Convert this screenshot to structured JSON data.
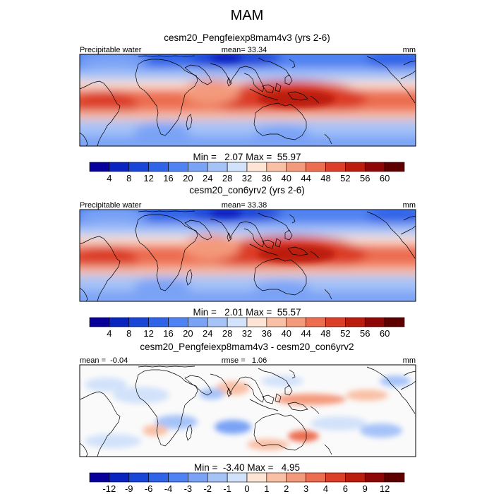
{
  "figure": {
    "title": "MAM"
  },
  "chart_data": [
    {
      "type": "heatmap",
      "title": "cesm20_Pengfeiexp8mam4v3 (yrs 2-6)",
      "left_label": "Precipitable water",
      "center_label": "mean=  33.34",
      "right_label": "mm",
      "stats_label": "Min =   2.07 Max =  55.97",
      "stats": {
        "min": 2.07,
        "max": 55.97,
        "mean": 33.34
      },
      "colorbar": {
        "ticks": [
          "4",
          "8",
          "12",
          "16",
          "20",
          "24",
          "28",
          "32",
          "36",
          "40",
          "44",
          "48",
          "52",
          "56",
          "60"
        ],
        "colors": [
          "#08009a",
          "#0a24c0",
          "#1a46d8",
          "#2f63e8",
          "#4f82f2",
          "#7aa3f6",
          "#a6c3f8",
          "#d2e2fa",
          "#fde4d4",
          "#f9c0a6",
          "#f49a7c",
          "#ec6d50",
          "#dc3e28",
          "#bc1c0e",
          "#8e0606",
          "#5e0000"
        ]
      }
    },
    {
      "type": "heatmap",
      "title": "cesm20_con6yrv2 (yrs 2-6)",
      "left_label": "Precipitable water",
      "center_label": "mean=  33.38",
      "right_label": "mm",
      "stats_label": "Min =   2.01 Max =  55.57",
      "stats": {
        "min": 2.01,
        "max": 55.57,
        "mean": 33.38
      },
      "colorbar": {
        "ticks": [
          "4",
          "8",
          "12",
          "16",
          "20",
          "24",
          "28",
          "32",
          "36",
          "40",
          "44",
          "48",
          "52",
          "56",
          "60"
        ],
        "colors": [
          "#08009a",
          "#0a24c0",
          "#1a46d8",
          "#2f63e8",
          "#4f82f2",
          "#7aa3f6",
          "#a6c3f8",
          "#d2e2fa",
          "#fde4d4",
          "#f9c0a6",
          "#f49a7c",
          "#ec6d50",
          "#dc3e28",
          "#bc1c0e",
          "#8e0606",
          "#5e0000"
        ]
      }
    },
    {
      "type": "heatmap",
      "title": "cesm20_Pengfeiexp8mam4v3 - cesm20_con6yrv2",
      "left_label": "mean =  -0.04",
      "center_label": "rmse =   1.06",
      "right_label": "mm",
      "stats_label": "Min =  -3.40 Max =   4.95",
      "stats": {
        "min": -3.4,
        "max": 4.95,
        "mean": -0.04,
        "rmse": 1.06
      },
      "colorbar": {
        "ticks": [
          "-12",
          "-9",
          "-6",
          "-4",
          "-3",
          "-2",
          "-1",
          "0",
          "1",
          "2",
          "3",
          "4",
          "6",
          "9",
          "12"
        ],
        "colors": [
          "#08009a",
          "#0a24c0",
          "#1a46d8",
          "#2f63e8",
          "#4f82f2",
          "#7aa3f6",
          "#a6c3f8",
          "#d2e2fa",
          "#fde4d4",
          "#f9c0a6",
          "#f49a7c",
          "#ec6d50",
          "#dc3e28",
          "#bc1c0e",
          "#8e0606",
          "#5e0000"
        ]
      }
    }
  ]
}
